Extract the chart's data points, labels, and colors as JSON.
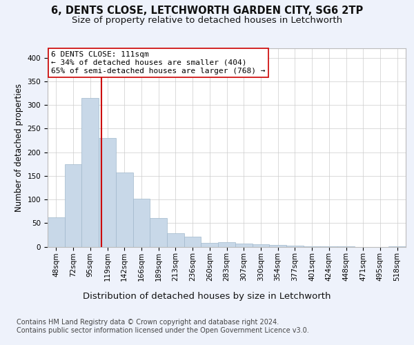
{
  "title": "6, DENTS CLOSE, LETCHWORTH GARDEN CITY, SG6 2TP",
  "subtitle": "Size of property relative to detached houses in Letchworth",
  "xlabel": "Distribution of detached houses by size in Letchworth",
  "ylabel": "Number of detached properties",
  "bar_labels": [
    "48sqm",
    "72sqm",
    "95sqm",
    "119sqm",
    "142sqm",
    "166sqm",
    "189sqm",
    "213sqm",
    "236sqm",
    "260sqm",
    "283sqm",
    "307sqm",
    "330sqm",
    "354sqm",
    "377sqm",
    "401sqm",
    "424sqm",
    "448sqm",
    "471sqm",
    "495sqm",
    "518sqm"
  ],
  "bar_values": [
    62,
    175,
    315,
    230,
    157,
    102,
    61,
    28,
    21,
    8,
    10,
    7,
    5,
    3,
    2,
    1,
    1,
    1,
    0,
    0,
    1
  ],
  "bar_color": "#c8d8e8",
  "bar_edgecolor": "#a0b8cc",
  "vline_color": "#cc0000",
  "annotation_text": "6 DENTS CLOSE: 111sqm\n← 34% of detached houses are smaller (404)\n65% of semi-detached houses are larger (768) →",
  "annotation_box_edgecolor": "#cc0000",
  "annotation_box_facecolor": "#ffffff",
  "ylim": [
    0,
    420
  ],
  "yticks": [
    0,
    50,
    100,
    150,
    200,
    250,
    300,
    350,
    400
  ],
  "background_color": "#eef2fb",
  "plot_background": "#ffffff",
  "footer": "Contains HM Land Registry data © Crown copyright and database right 2024.\nContains public sector information licensed under the Open Government Licence v3.0.",
  "title_fontsize": 10.5,
  "subtitle_fontsize": 9.5,
  "xlabel_fontsize": 9.5,
  "ylabel_fontsize": 8.5,
  "tick_fontsize": 7.5,
  "annotation_fontsize": 8,
  "footer_fontsize": 7
}
